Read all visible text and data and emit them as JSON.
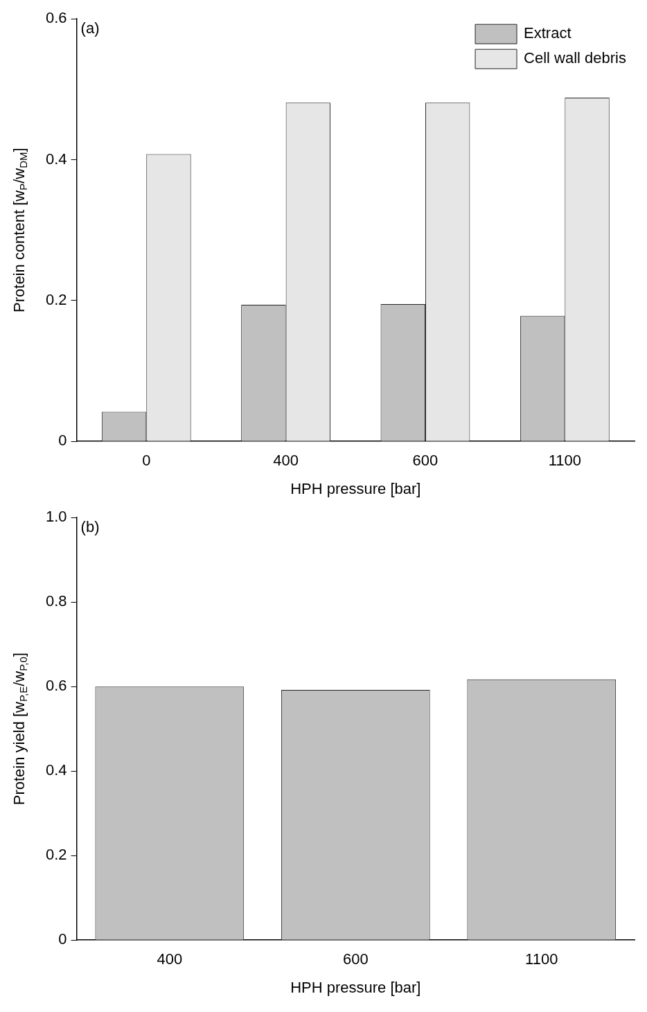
{
  "chart_data": [
    {
      "type": "bar",
      "categories": [
        "0",
        "400",
        "600",
        "1100"
      ],
      "series": [
        {
          "name": "Extract",
          "color": "#c0c0c0",
          "values": [
            0.042,
            0.194,
            0.195,
            0.178
          ]
        },
        {
          "name": "Cell wall debris",
          "color": "#e6e6e6",
          "values": [
            0.408,
            0.481,
            0.481,
            0.488
          ]
        }
      ],
      "ylim": [
        0,
        0.6
      ],
      "yticks": [
        0,
        0.2,
        0.4,
        0.6
      ],
      "xlabel": "HPH pressure [bar]",
      "ylabel": "Protein content [w$_{P}$/w$_{DM}$]",
      "annotations": [
        "(a)"
      ],
      "legend": "top right",
      "grid": false
    },
    {
      "type": "bar",
      "categories": [
        "400",
        "600",
        "1100"
      ],
      "series": [
        {
          "color": "#c0c0c0",
          "values": [
            0.6,
            0.592,
            0.617
          ]
        }
      ],
      "ylim": [
        0,
        1
      ],
      "yticks": [
        0,
        0.2,
        0.4,
        0.6,
        0.8,
        {
          "value": 1,
          "label": "1.0"
        }
      ],
      "xlabel": "HPH pressure [bar]",
      "ylabel": "Protein yield [w$_{P,E}$/w$_{P,0}$]",
      "annotations": [
        "(b)"
      ],
      "grid": false
    }
  ]
}
